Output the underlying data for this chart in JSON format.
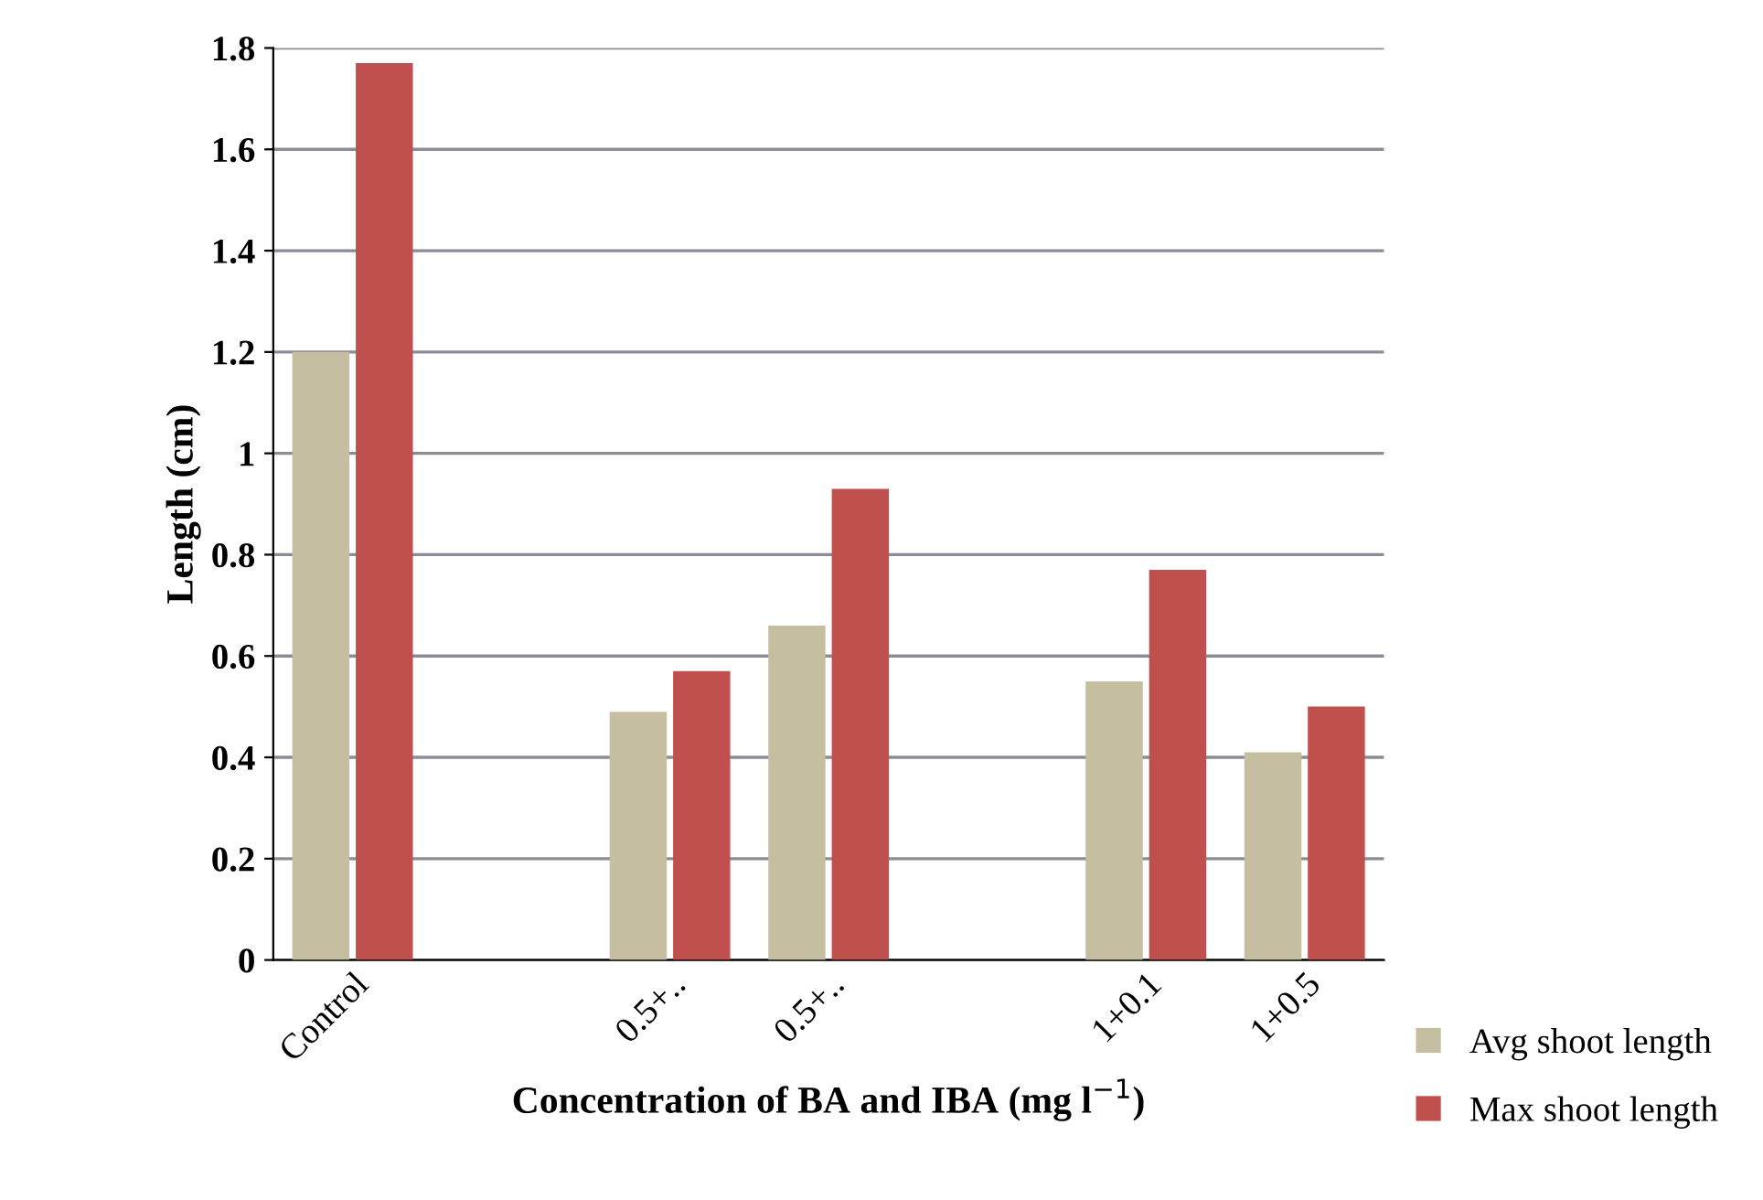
{
  "chart_data": {
    "type": "bar",
    "xlabel": "Concentration of BA and IBA (mg l$^{−1}$)",
    "ylabel": "Length (cm)",
    "categories": [
      "Control",
      null,
      "0.5+..",
      "0.5+..",
      null,
      "1+0.1",
      "1+0.5"
    ],
    "series": [
      {
        "name": "Avg shoot length",
        "color": "#c5bea0",
        "values": [
          1.2,
          null,
          0.49,
          0.66,
          null,
          0.55,
          0.41
        ]
      },
      {
        "name": "Max shoot length",
        "color": "#c0504d",
        "values": [
          1.77,
          null,
          0.57,
          0.93,
          null,
          0.77,
          0.5
        ]
      }
    ],
    "ylim": [
      0,
      1.8
    ],
    "yticks": [
      0,
      0.2,
      0.4,
      0.6,
      0.8,
      1,
      1.2,
      1.4,
      1.6,
      1.8
    ],
    "grid": "y",
    "legend": "bottom right"
  }
}
